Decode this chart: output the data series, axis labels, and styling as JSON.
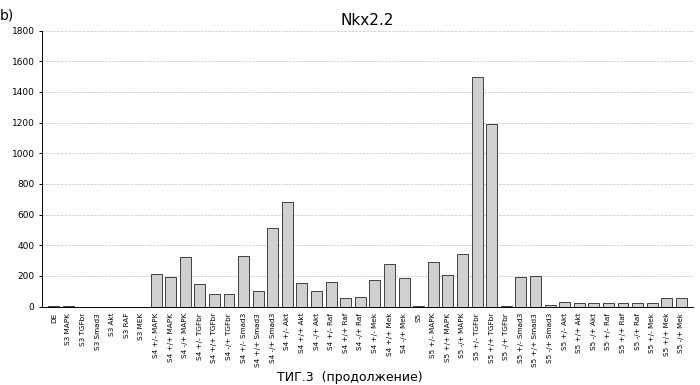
{
  "title": "Nkx2.2",
  "xlabel": "ΤИГ.3  (продолжение)",
  "bottom_label": "ΤИГ.3  (продолжение)",
  "ylabel": "",
  "ylim": [
    0,
    1800
  ],
  "yticks": [
    0,
    200,
    400,
    600,
    800,
    1000,
    1200,
    1400,
    1600,
    1800
  ],
  "label_b": "b)",
  "categories": [
    "DE",
    "S3 MAPK",
    "S3 TGFbr",
    "S3 Smad3",
    "S3 Akt",
    "S3 RAF",
    "S3 MEK",
    "S4 +/- MAPK",
    "S4 +/+ MAPK",
    "S4 -/+ MAPK",
    "S4 +/- TGFbr",
    "S4 +/+ TGFbr",
    "S4 -/+ TGFbr",
    "S4 +/- Smad3",
    "S4 +/+ Smad3",
    "S4 -/+ Smad3",
    "S4 +/- Akt",
    "S4 +/+ Akt",
    "S4 -/+ Akt",
    "S4 +/- Raf",
    "S4 +/+ Raf",
    "S4 -/+ Raf",
    "S4 +/- Mek",
    "S4 +/+ Mek",
    "S4 -/+ Mek",
    "S5",
    "S5 +/- MAPK",
    "S5 +/+ MAPK",
    "S5 -/+ MAPK",
    "S5 +/- TGFbr",
    "S5 +/+ TGFbr",
    "S5 -/+ TGFbr",
    "S5 +/- Smad3",
    "S5 +/+ Smad3",
    "S5 -/+ Smad3",
    "S5 +/- Akt",
    "S5 +/+ Akt",
    "S5 -/+ Akt",
    "S5 +/- Raf",
    "S5 +/+ Raf",
    "S5 -/+ Raf",
    "S5 +/- Mek",
    "S5 +/+ Mek",
    "S5 -/+ Mek"
  ],
  "values": [
    5,
    2,
    0,
    0,
    0,
    0,
    0,
    210,
    190,
    320,
    150,
    80,
    80,
    330,
    100,
    510,
    680,
    155,
    100,
    160,
    55,
    60,
    170,
    280,
    185,
    5,
    290,
    205,
    340,
    1500,
    1190,
    5,
    190,
    200,
    10,
    30,
    25,
    25,
    20,
    25,
    25,
    20,
    55,
    55
  ],
  "bar_color": "#d0d0d0",
  "bar_edge_color": "#000000",
  "bg_color": "#ffffff",
  "grid_color": "#999999",
  "title_fontsize": 11,
  "tick_fontsize": 5.2,
  "fig_width": 7.0,
  "fig_height": 3.85,
  "dpi": 100
}
